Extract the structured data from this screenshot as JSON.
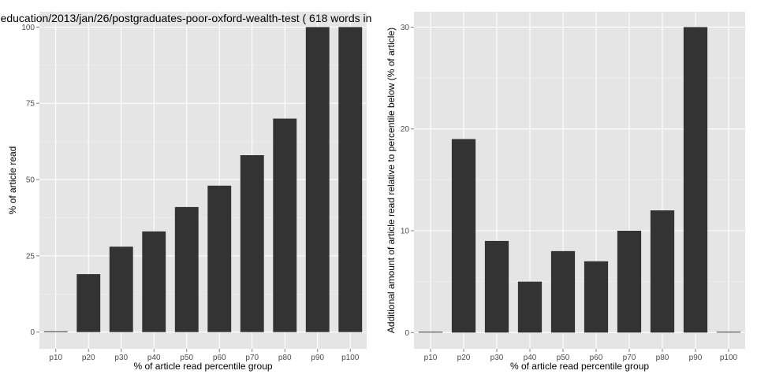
{
  "chart_data": [
    {
      "type": "bar",
      "title": "education/2013/jan/26/postgraduates-poor-oxford-wealth-test ( 618 words in",
      "xlabel": "% of article read percentile group",
      "ylabel": "% of article read",
      "categories": [
        "p10",
        "p20",
        "p30",
        "p40",
        "p50",
        "p60",
        "p70",
        "p80",
        "p90",
        "p100"
      ],
      "values": [
        0,
        19,
        28,
        33,
        41,
        48,
        58,
        70,
        100,
        100
      ],
      "ylim": [
        -5.5,
        105
      ],
      "yticks": [
        0,
        25,
        50,
        75,
        100
      ],
      "grid": true,
      "background": "#e5e5e5",
      "bar_color": "#333333",
      "grid_color": "#ffffff"
    },
    {
      "type": "bar",
      "title": "",
      "xlabel": "% of article read percentile group",
      "ylabel": "Additional amount of article read relative to percentile below (% of article)",
      "categories": [
        "p10",
        "p20",
        "p30",
        "p40",
        "p50",
        "p60",
        "p70",
        "p80",
        "p90",
        "p100"
      ],
      "values": [
        0,
        19,
        9,
        5,
        8,
        7,
        10,
        12,
        30,
        0
      ],
      "ylim": [
        -1.6,
        31.5
      ],
      "yticks": [
        0,
        10,
        20,
        30
      ],
      "grid": true,
      "background": "#e5e5e5",
      "bar_color": "#333333",
      "grid_color": "#ffffff"
    }
  ]
}
